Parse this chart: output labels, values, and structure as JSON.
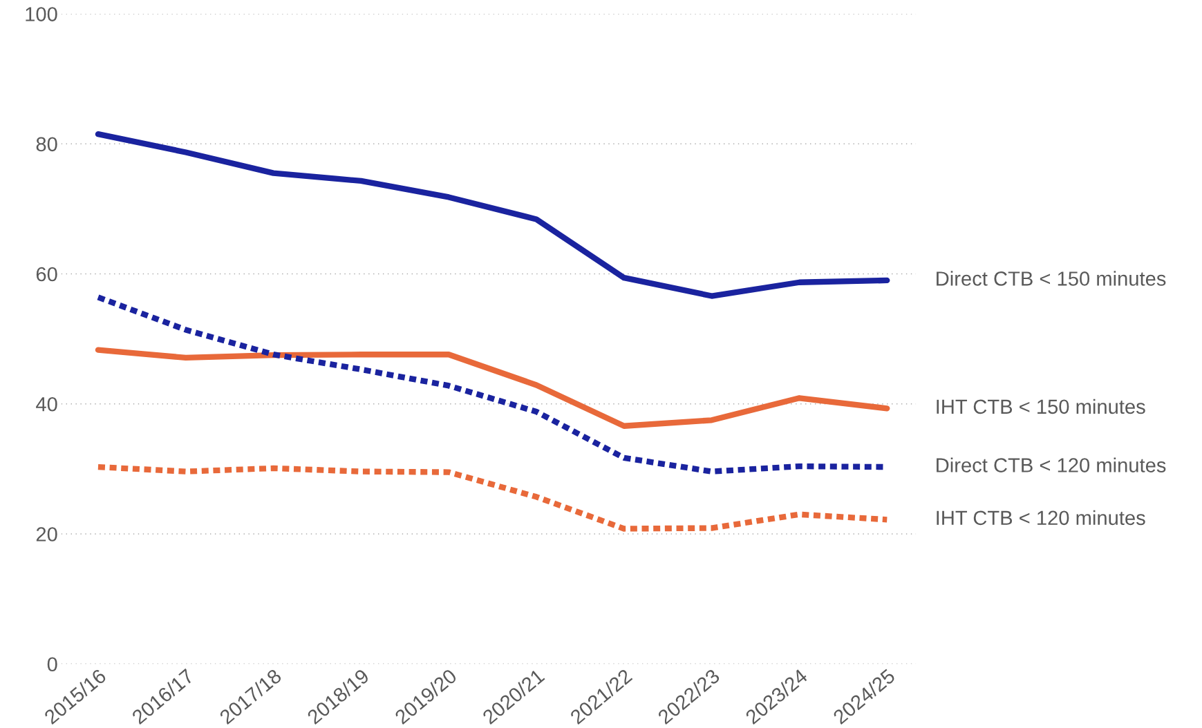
{
  "chart_data": {
    "type": "line",
    "categories": [
      "2015/16",
      "2016/17",
      "2017/18",
      "2018/19",
      "2019/20",
      "2020/21",
      "2021/22",
      "2022/23",
      "2023/24",
      "2024/25"
    ],
    "series": [
      {
        "name": "Direct CTB < 150 minutes",
        "color": "#1a239f",
        "line_style": "solid",
        "values": [
          81.5,
          78.7,
          75.5,
          74.3,
          71.8,
          68.4,
          59.4,
          56.6,
          58.7,
          59.0
        ]
      },
      {
        "name": "IHT CTB < 150 minutes",
        "color": "#e8693a",
        "line_style": "solid",
        "values": [
          48.3,
          47.1,
          47.5,
          47.6,
          47.6,
          42.9,
          36.6,
          37.5,
          40.9,
          39.3
        ]
      },
      {
        "name": "Direct CTB < 120 minutes",
        "color": "#1a239f",
        "line_style": "dotted",
        "values": [
          56.4,
          51.4,
          47.6,
          45.3,
          42.8,
          38.8,
          31.7,
          29.6,
          30.4,
          30.3
        ]
      },
      {
        "name": "IHT CTB < 120 minutes",
        "color": "#e8693a",
        "line_style": "dotted",
        "values": [
          30.3,
          29.6,
          30.1,
          29.6,
          29.5,
          25.7,
          20.8,
          20.9,
          23.0,
          22.2
        ]
      }
    ],
    "ylim": [
      0,
      100
    ],
    "yticks": [
      0,
      20,
      40,
      60,
      80,
      100
    ],
    "grid": "y",
    "legend": false,
    "marker": "none"
  }
}
